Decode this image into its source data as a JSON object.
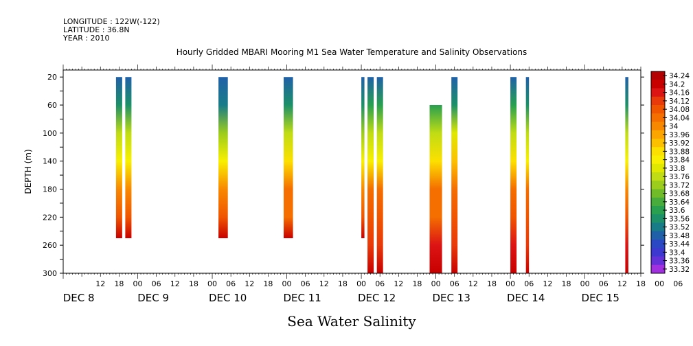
{
  "header": {
    "longitude": "LONGITUDE : 122W(-122)",
    "latitude": "LATITUDE : 36.8N",
    "year": "YEAR : 2010"
  },
  "chart_data": {
    "type": "heatmap",
    "title": "Hourly Gridded MBARI Mooring M1 Sea Water Temperature and Salinity Observations",
    "xlabel": "Sea Water Salinity",
    "ylabel": "DEPTH (m)",
    "ylim": [
      300,
      10
    ],
    "yticks": [
      20,
      60,
      100,
      140,
      180,
      220,
      260,
      300
    ],
    "x_range_hours": [
      0,
      186
    ],
    "x_origin": "DEC 8 00",
    "x_hour_ticks": [
      "12",
      "18",
      "00",
      "06",
      "12",
      "18",
      "00",
      "06",
      "12",
      "18",
      "00",
      "06",
      "12",
      "18",
      "00",
      "06",
      "12",
      "18",
      "00",
      "06",
      "12",
      "18",
      "00",
      "06",
      "12",
      "18",
      "00",
      "06",
      "12",
      "18",
      "00",
      "06"
    ],
    "x_day_labels": [
      "DEC  8",
      "DEC  9",
      "DEC 10",
      "DEC 11",
      "DEC 12",
      "DEC 13",
      "DEC 14",
      "DEC 15"
    ],
    "colorbar_values": [
      34.24,
      34.2,
      34.16,
      34.12,
      34.08,
      34.04,
      34.0,
      33.96,
      33.92,
      33.88,
      33.84,
      33.8,
      33.76,
      33.72,
      33.68,
      33.64,
      33.6,
      33.56,
      33.52,
      33.48,
      33.44,
      33.4,
      33.36,
      33.32
    ],
    "colorbar_labels": [
      "34.24",
      "34.2",
      "34.16",
      "34.12",
      "34.08",
      "34.04",
      "34",
      "33.96",
      "33.92",
      "33.88",
      "33.84",
      "33.8",
      "33.76",
      "33.72",
      "33.68",
      "33.64",
      "33.6",
      "33.56",
      "33.52",
      "33.48",
      "33.44",
      "33.4",
      "33.36",
      "33.32"
    ],
    "colors": [
      "#b40000",
      "#c80000",
      "#dc1414",
      "#e83a0a",
      "#f05500",
      "#f46e00",
      "#f88800",
      "#fca400",
      "#fcc000",
      "#fce000",
      "#f8f000",
      "#e0e800",
      "#c0dc14",
      "#9ccc1c",
      "#70bc28",
      "#48ac3c",
      "#28a050",
      "#1c9068",
      "#187c88",
      "#2060a8",
      "#2a48c4",
      "#3c38d0",
      "#6430d8",
      "#a030e0"
    ],
    "profiles": [
      {
        "start_hour": 17,
        "end_hour": 19,
        "depths": [
          20,
          60,
          100,
          140,
          180,
          220,
          250
        ],
        "salinity": [
          33.48,
          33.56,
          33.76,
          33.86,
          34.0,
          34.08,
          34.2
        ]
      },
      {
        "start_hour": 20,
        "end_hour": 22,
        "depths": [
          20,
          60,
          100,
          140,
          180,
          220,
          250
        ],
        "salinity": [
          33.48,
          33.56,
          33.76,
          33.86,
          34.0,
          34.08,
          34.2
        ]
      },
      {
        "start_hour": 50,
        "end_hour": 53,
        "depths": [
          20,
          60,
          100,
          140,
          180,
          220,
          250
        ],
        "salinity": [
          33.48,
          33.52,
          33.72,
          33.86,
          34.02,
          34.08,
          34.2
        ]
      },
      {
        "start_hour": 71,
        "end_hour": 74,
        "depths": [
          20,
          60,
          100,
          140,
          180,
          220,
          250
        ],
        "salinity": [
          33.48,
          33.56,
          33.76,
          33.88,
          34.04,
          34.06,
          34.2
        ]
      },
      {
        "start_hour": 96,
        "end_hour": 97,
        "depths": [
          20,
          60,
          100,
          140,
          180,
          220,
          250
        ],
        "salinity": [
          33.48,
          33.56,
          33.72,
          33.86,
          34.02,
          34.08,
          34.2
        ]
      },
      {
        "start_hour": 98,
        "end_hour": 100,
        "depths": [
          20,
          60,
          100,
          140,
          180,
          220,
          260,
          300
        ],
        "salinity": [
          33.48,
          33.6,
          33.76,
          33.86,
          34.04,
          34.08,
          34.14,
          34.2
        ]
      },
      {
        "start_hour": 101,
        "end_hour": 103,
        "depths": [
          20,
          60,
          100,
          140,
          180,
          220,
          260,
          300
        ],
        "salinity": [
          33.48,
          33.6,
          33.76,
          33.86,
          34.04,
          34.08,
          34.14,
          34.2
        ]
      },
      {
        "start_hour": 118,
        "end_hour": 122,
        "depths": [
          60,
          100,
          140,
          180,
          220,
          260,
          300
        ],
        "salinity": [
          33.6,
          33.76,
          33.9,
          34.04,
          34.06,
          34.16,
          34.2
        ]
      },
      {
        "start_hour": 125,
        "end_hour": 127,
        "depths": [
          20,
          60,
          100,
          140,
          180,
          220,
          260,
          300
        ],
        "salinity": [
          33.48,
          33.56,
          33.8,
          33.92,
          34.04,
          34.08,
          34.14,
          34.2
        ]
      },
      {
        "start_hour": 144,
        "end_hour": 146,
        "depths": [
          20,
          60,
          100,
          140,
          180,
          220,
          260,
          300
        ],
        "salinity": [
          33.48,
          33.6,
          33.76,
          33.88,
          34.04,
          34.08,
          34.16,
          34.2
        ]
      },
      {
        "start_hour": 149,
        "end_hour": 150,
        "depths": [
          20,
          60,
          100,
          140,
          180,
          220,
          260,
          300
        ],
        "salinity": [
          33.48,
          33.56,
          33.76,
          33.86,
          34.04,
          34.08,
          34.14,
          34.2
        ]
      },
      {
        "start_hour": 181,
        "end_hour": 182,
        "depths": [
          20,
          60,
          100,
          140,
          180,
          220,
          260,
          300
        ],
        "salinity": [
          33.48,
          33.56,
          33.76,
          33.86,
          34.02,
          34.08,
          34.16,
          34.2
        ]
      }
    ]
  }
}
